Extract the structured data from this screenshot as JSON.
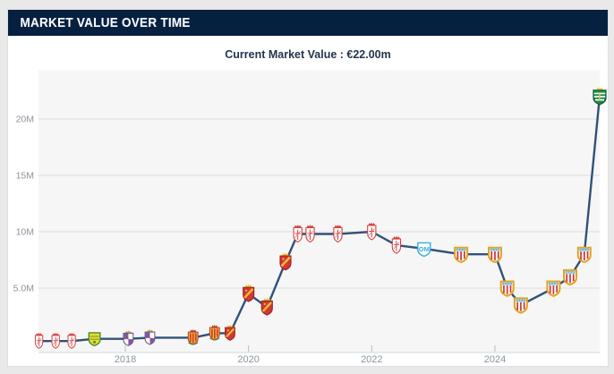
{
  "header": {
    "title": "MARKET VALUE OVER TIME"
  },
  "subtitle": {
    "text": "Current Market Value : €22.00m",
    "label": "Current Market Value",
    "value": "€22.00m"
  },
  "chart_data": {
    "type": "line",
    "title": "Market value over time",
    "subtitle": "Current Market Value : €22.00m",
    "unit": "EUR million",
    "grid": true,
    "legend": false,
    "line_color": "#30517c",
    "plot_bg": "#f6f6f6",
    "grid_color": "#dcdcdc",
    "axis_line_color": "#ccd9e2",
    "tick_color": "#b6bdc5",
    "label_color": "#8e939c",
    "x_axis": {
      "ticks": [
        2018,
        2020,
        2022,
        2024
      ],
      "range": [
        2016.45,
        2025.85
      ]
    },
    "y_axis": {
      "tick_labels": [
        "5.0M",
        "10M",
        "15M",
        "20M"
      ],
      "tick_values": [
        5,
        10,
        15,
        20
      ],
      "range": [
        0,
        24.4
      ]
    },
    "points": [
      {
        "date": 2016.6,
        "value_m": 0.3,
        "club": "granada"
      },
      {
        "date": 2016.87,
        "value_m": 0.3,
        "club": "granada"
      },
      {
        "date": 2017.13,
        "value_m": 0.3,
        "club": "granada"
      },
      {
        "date": 2017.5,
        "value_m": 0.5,
        "club": "leones"
      },
      {
        "date": 2018.05,
        "value_m": 0.5,
        "club": "valladolid"
      },
      {
        "date": 2018.4,
        "value_m": 0.6,
        "club": "valladolid"
      },
      {
        "date": 2019.1,
        "value_m": 0.6,
        "club": "nastic"
      },
      {
        "date": 2019.45,
        "value_m": 1.0,
        "club": "nastic"
      },
      {
        "date": 2019.7,
        "value_m": 1.0,
        "club": "zaragoza"
      },
      {
        "date": 2020.0,
        "value_m": 4.5,
        "club": "zaragoza"
      },
      {
        "date": 2020.3,
        "value_m": 3.3,
        "club": "zaragoza"
      },
      {
        "date": 2020.6,
        "value_m": 7.3,
        "club": "zaragoza"
      },
      {
        "date": 2020.8,
        "value_m": 9.8,
        "club": "granada"
      },
      {
        "date": 2021.0,
        "value_m": 9.8,
        "club": "granada"
      },
      {
        "date": 2021.45,
        "value_m": 9.8,
        "club": "granada"
      },
      {
        "date": 2022.0,
        "value_m": 10.0,
        "club": "granada"
      },
      {
        "date": 2022.4,
        "value_m": 8.8,
        "club": "granada"
      },
      {
        "date": 2022.85,
        "value_m": 8.5,
        "club": "marseille"
      },
      {
        "date": 2023.45,
        "value_m": 8.0,
        "club": "almeria"
      },
      {
        "date": 2024.0,
        "value_m": 8.0,
        "club": "almeria"
      },
      {
        "date": 2024.2,
        "value_m": 5.0,
        "club": "almeria"
      },
      {
        "date": 2024.42,
        "value_m": 3.5,
        "club": "almeria"
      },
      {
        "date": 2024.95,
        "value_m": 5.0,
        "club": "almeria"
      },
      {
        "date": 2025.22,
        "value_m": 6.0,
        "club": "almeria"
      },
      {
        "date": 2025.45,
        "value_m": 8.0,
        "club": "almeria"
      },
      {
        "date": 2025.7,
        "value_m": 22.0,
        "club": "sporting-cp"
      }
    ],
    "crest_icons": {
      "granada": "white shield, red cross and crown",
      "leones": "yellow shield with green border and stripes",
      "valladolid": "purple and white quartered shield with crown",
      "nastic": "yellow shield with red stripes and crown",
      "zaragoza": "red shield with gold diagonal band and crown",
      "marseille": "white shield with light-blue OM monogram",
      "almeria": "gold-framed shield, red stripes, blue chief",
      "sporting-cp": "green shield with white hoops and gold crown"
    }
  }
}
